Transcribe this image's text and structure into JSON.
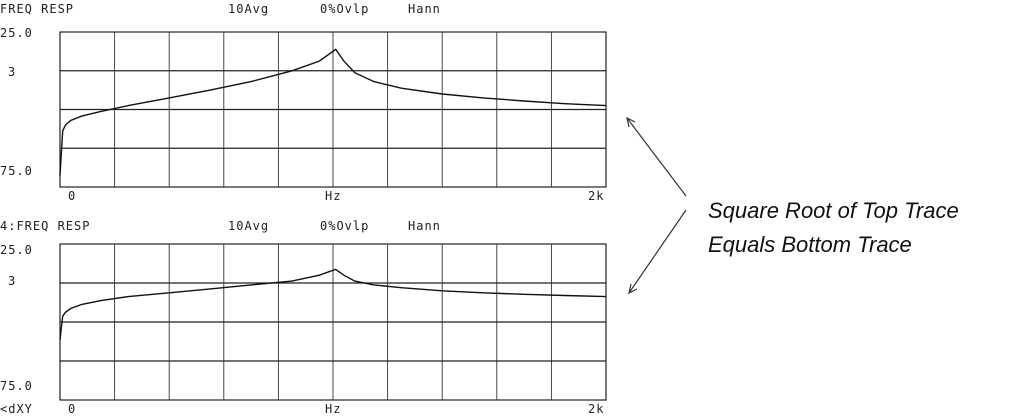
{
  "annotation": {
    "line1": "Square Root of Top Trace",
    "line2": "Equals Bottom Trace"
  },
  "chart_data": [
    {
      "type": "line",
      "header": {
        "label": "FREQ RESP",
        "avg": "10Avg",
        "ovlp": "0%Ovlp",
        "window": "Hann"
      },
      "y_top_label": "25.0",
      "y_mid_label": "3",
      "y_bottom_label": "75.0",
      "x_start_label": "0",
      "x_unit_label": "Hz",
      "x_end_label": "2k",
      "prefix_label": "",
      "grid": true,
      "x_divisions": 10,
      "y_divisions": 4,
      "x_range": [
        0,
        2000
      ],
      "y_range": [
        0,
        4
      ],
      "x": [
        0,
        10,
        20,
        40,
        80,
        150,
        250,
        400,
        550,
        700,
        850,
        950,
        1010,
        1040,
        1080,
        1150,
        1250,
        1400,
        1550,
        1700,
        1850,
        2000
      ],
      "y": [
        0.3,
        1.45,
        1.6,
        1.72,
        1.83,
        1.95,
        2.1,
        2.3,
        2.5,
        2.72,
        3.0,
        3.25,
        3.55,
        3.25,
        2.95,
        2.72,
        2.55,
        2.4,
        2.3,
        2.22,
        2.15,
        2.1
      ]
    },
    {
      "type": "line",
      "header": {
        "label": "4:FREQ RESP",
        "avg": "10Avg",
        "ovlp": "0%Ovlp",
        "window": "Hann"
      },
      "y_top_label": "25.0",
      "y_mid_label": "3",
      "y_bottom_label": "75.0",
      "x_start_label": "0",
      "x_unit_label": "Hz",
      "x_end_label": "2k",
      "prefix_label": "<dXY",
      "grid": true,
      "x_divisions": 10,
      "y_divisions": 4,
      "x_range": [
        0,
        2000
      ],
      "y_range": [
        0,
        4
      ],
      "x": [
        0,
        10,
        20,
        40,
        80,
        150,
        250,
        400,
        550,
        700,
        850,
        950,
        1010,
        1040,
        1080,
        1150,
        1250,
        1400,
        1550,
        1700,
        1850,
        2000
      ],
      "y": [
        1.55,
        2.15,
        2.25,
        2.35,
        2.45,
        2.55,
        2.65,
        2.75,
        2.85,
        2.95,
        3.05,
        3.2,
        3.35,
        3.2,
        3.05,
        2.95,
        2.88,
        2.8,
        2.75,
        2.71,
        2.68,
        2.65
      ]
    }
  ]
}
